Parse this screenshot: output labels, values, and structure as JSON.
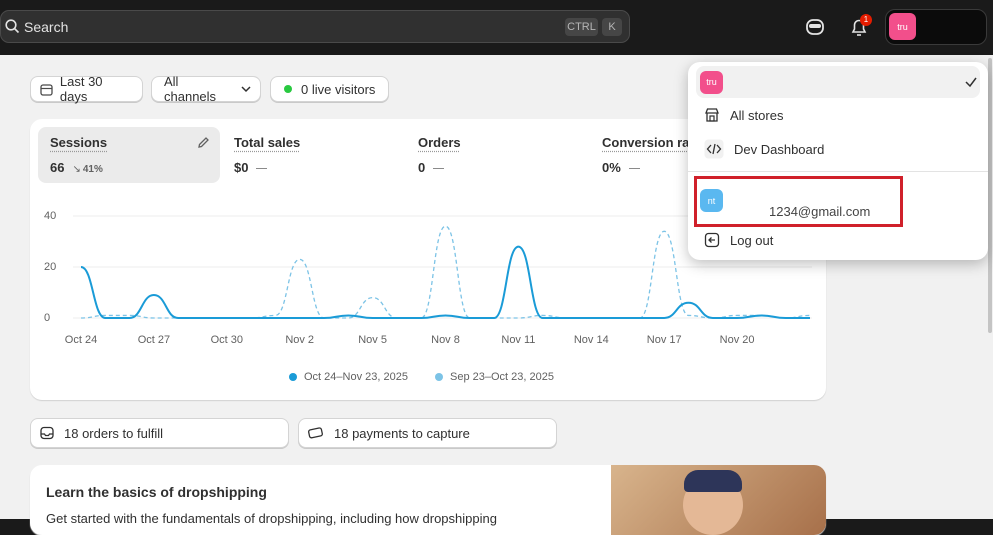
{
  "topbar": {
    "search_placeholder": "Search",
    "shortcut_keys": [
      "CTRL",
      "K"
    ],
    "notification_count": "1",
    "store_avatar": "tru"
  },
  "filters": [
    "Last 30 days",
    "All channels",
    "0 live visitors"
  ],
  "metrics": [
    {
      "label": "Sessions",
      "value": "66",
      "change": "41%"
    },
    {
      "label": "Total sales",
      "value": "$0"
    },
    {
      "label": "Orders",
      "value": "0"
    },
    {
      "label": "Conversion rate",
      "value": "0%"
    }
  ],
  "chart_data": {
    "type": "line",
    "categories": [
      "Oct 24",
      null,
      null,
      "Oct 27",
      null,
      null,
      "Oct 30",
      null,
      null,
      "Nov 2",
      null,
      null,
      "Nov 5",
      null,
      null,
      "Nov 8",
      null,
      null,
      "Nov 11",
      null,
      null,
      "Nov 14",
      null,
      null,
      "Nov 17",
      null,
      null,
      "Nov 20",
      null,
      null,
      null
    ],
    "series": [
      {
        "name": "Oct 24–Nov 23, 2025",
        "color": "#1a9bd7",
        "style": "solid",
        "values": [
          20,
          0,
          0,
          9,
          0,
          0,
          0,
          0,
          0,
          0,
          0,
          1,
          0,
          0,
          0,
          1,
          0,
          0,
          28,
          0,
          0,
          0,
          0,
          0,
          0,
          6,
          0,
          0,
          1,
          0,
          0
        ]
      },
      {
        "name": "Sep 23–Oct 23, 2025",
        "color": "#7cc3e6",
        "style": "dashed",
        "values": [
          0,
          1,
          1,
          0,
          0,
          0,
          0,
          0,
          1,
          23,
          0,
          0,
          8,
          0,
          0,
          36,
          0,
          0,
          0,
          1,
          0,
          0,
          0,
          0,
          34,
          1,
          0,
          1,
          1,
          0,
          1
        ]
      }
    ],
    "ylim": [
      0,
      40
    ],
    "yticks": [
      0,
      20,
      40
    ],
    "grid": true
  },
  "tasks": [
    "18 orders to fulfill",
    "18 payments to capture"
  ],
  "learn_card": {
    "title": "Learn the basics of dropshipping",
    "description": "Get started with the fundamentals of dropshipping, including how dropshipping"
  },
  "account_menu": {
    "store_avatar": "tru",
    "items": [
      "All stores",
      "Dev Dashboard"
    ],
    "account_avatar": "nt",
    "email": "1234@gmail.com",
    "logout": "Log out"
  }
}
